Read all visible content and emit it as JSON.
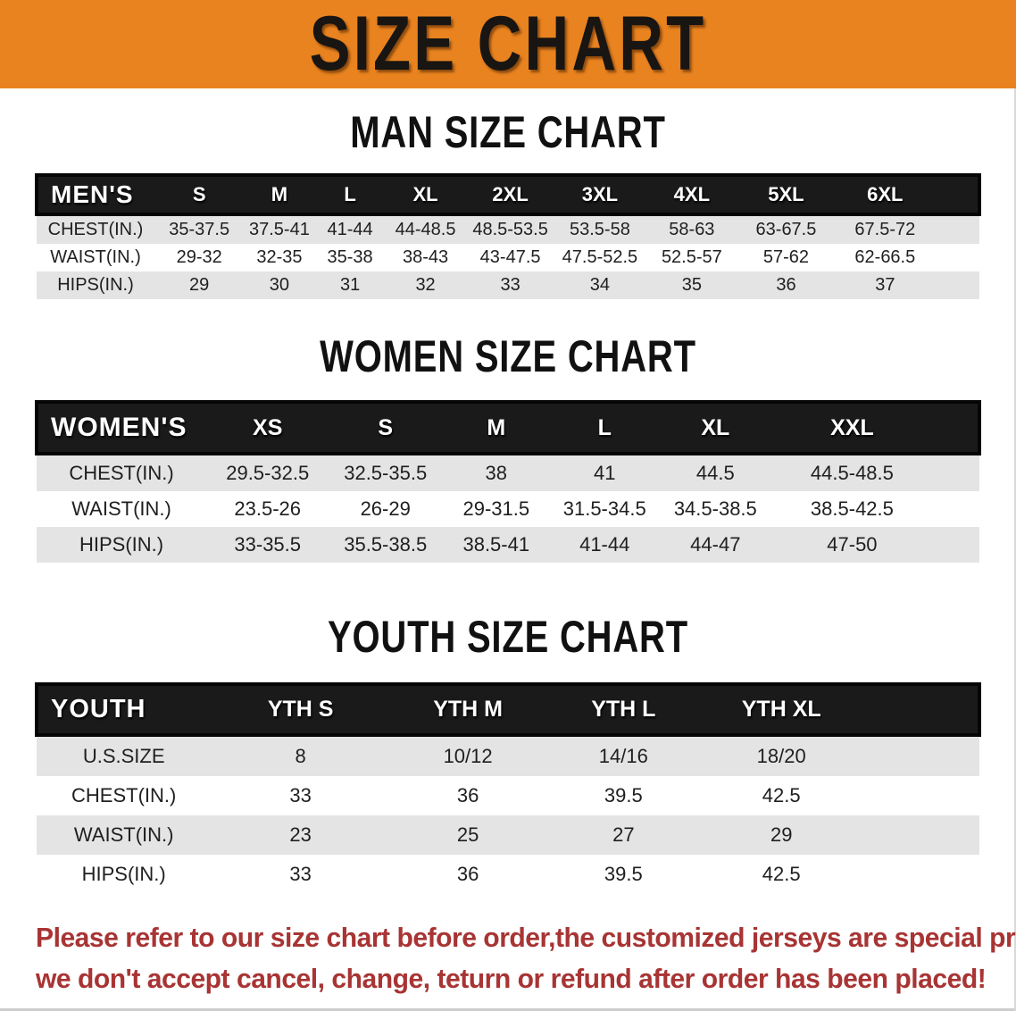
{
  "banner": {
    "title": "SIZE CHART"
  },
  "sections": [
    {
      "id": "men",
      "title": "MAN SIZE CHART",
      "table": {
        "header_label": "MEN'S",
        "sizes": [
          "S",
          "M",
          "L",
          "XL",
          "2XL",
          "3XL",
          "4XL",
          "5XL",
          "6XL"
        ],
        "rows": [
          {
            "label": "CHEST(IN.)",
            "values": [
              "35-37.5",
              "37.5-41",
              "41-44",
              "44-48.5",
              "48.5-53.5",
              "53.5-58",
              "58-63",
              "63-67.5",
              "67.5-72"
            ]
          },
          {
            "label": "WAIST(IN.)",
            "values": [
              "29-32",
              "32-35",
              "35-38",
              "38-43",
              "43-47.5",
              "47.5-52.5",
              "52.5-57",
              "57-62",
              "62-66.5"
            ]
          },
          {
            "label": "HIPS(IN.)",
            "values": [
              "29",
              "30",
              "31",
              "32",
              "33",
              "34",
              "35",
              "36",
              "37"
            ]
          }
        ]
      }
    },
    {
      "id": "women",
      "title": "WOMEN SIZE CHART",
      "table": {
        "header_label": "WOMEN'S",
        "sizes": [
          "XS",
          "S",
          "M",
          "L",
          "XL",
          "XXL"
        ],
        "rows": [
          {
            "label": "CHEST(IN.)",
            "values": [
              "29.5-32.5",
              "32.5-35.5",
              "38",
              "41",
              "44.5",
              "44.5-48.5"
            ]
          },
          {
            "label": "WAIST(IN.)",
            "values": [
              "23.5-26",
              "26-29",
              "29-31.5",
              "31.5-34.5",
              "34.5-38.5",
              "38.5-42.5"
            ]
          },
          {
            "label": "HIPS(IN.)",
            "values": [
              "33-35.5",
              "35.5-38.5",
              "38.5-41",
              "41-44",
              "44-47",
              "47-50"
            ]
          }
        ]
      }
    },
    {
      "id": "youth",
      "title": "YOUTH SIZE CHART",
      "table": {
        "header_label": "YOUTH",
        "sizes": [
          "YTH S",
          "YTH M",
          "YTH L",
          "YTH XL"
        ],
        "rows": [
          {
            "label": "U.S.SIZE",
            "values": [
              "8",
              "10/12",
              "14/16",
              "18/20"
            ]
          },
          {
            "label": "CHEST(IN.)",
            "values": [
              "33",
              "36",
              "39.5",
              "42.5"
            ]
          },
          {
            "label": "WAIST(IN.)",
            "values": [
              "23",
              "25",
              "27",
              "29"
            ]
          },
          {
            "label": "HIPS(IN.)",
            "values": [
              "33",
              "36",
              "39.5",
              "42.5"
            ]
          }
        ]
      }
    }
  ],
  "disclaimer": {
    "line1": "Please refer to our size chart before order,the customized jerseys are special products,",
    "line2": "we don't accept cancel, change, teturn or refund after order has been placed!"
  },
  "colors": {
    "banner_bg": "#e8831f",
    "table_header_bg": "#1a1a1a",
    "row_stripe": "#e4e4e4",
    "disclaimer_red": "#a83434"
  }
}
